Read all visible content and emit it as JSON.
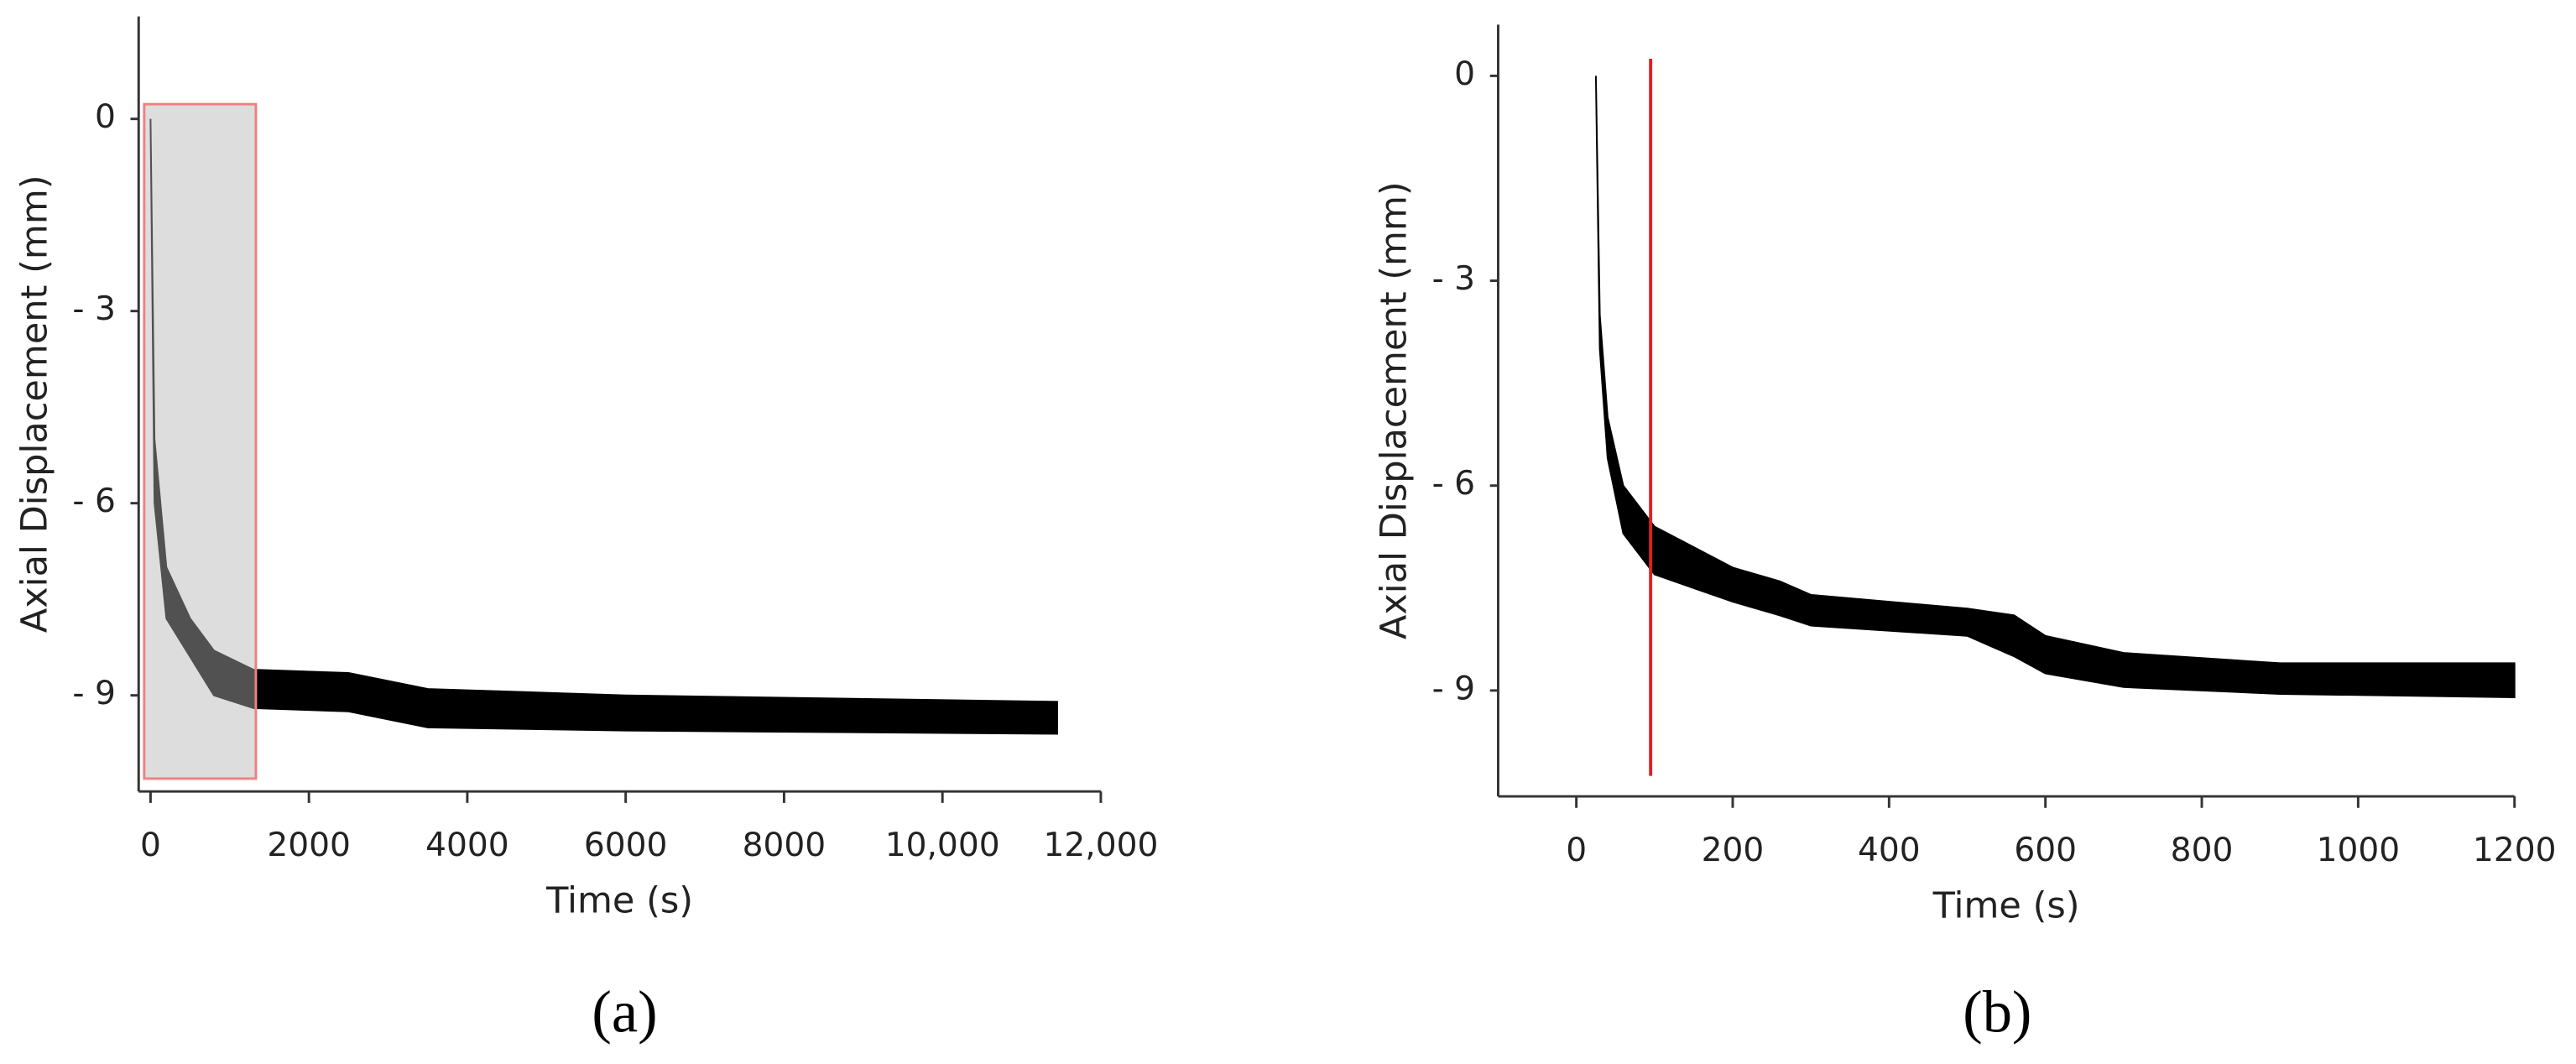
{
  "chart_data": [
    {
      "type": "band",
      "panel_label": "(a)",
      "x_label": "Time (s)",
      "y_label": "Axial Displacement (mm)",
      "color": "#000000",
      "x": [
        0,
        50,
        200,
        500,
        800,
        1300,
        2500,
        3500,
        6000,
        11450
      ],
      "upper": [
        0,
        -5,
        -7,
        -7.8,
        -8.3,
        -8.6,
        -8.65,
        -8.9,
        -9.0,
        -9.1
      ],
      "lower": [
        0,
        -6,
        -7.8,
        -8.4,
        -9.0,
        -9.2,
        -9.25,
        -9.5,
        -9.55,
        -9.6
      ],
      "xlim": [
        -150,
        12000
      ],
      "ylim": [
        -10.5,
        1.6
      ],
      "xticks": [
        0,
        2000,
        4000,
        6000,
        8000,
        {
          "value": 10000,
          "label": "10,000"
        },
        {
          "value": 12000,
          "label": "12,000"
        }
      ],
      "yticks": [
        0,
        {
          "value": -3,
          "label": "- 3"
        },
        {
          "value": -6,
          "label": "- 6"
        },
        {
          "value": -9,
          "label": "- 9"
        }
      ],
      "highlight": {
        "x": [
          -80,
          1330
        ],
        "y": [
          -10.3,
          0.23
        ],
        "fill": "#b4b4b4",
        "stroke": "#f08080"
      }
    },
    {
      "type": "band",
      "panel_label": "(b)",
      "x_label": "Time (s)",
      "y_label": "Axial Displacement (mm)",
      "color": "#000000",
      "x": [
        25,
        30,
        40,
        60,
        100,
        200,
        260,
        300,
        500,
        560,
        600,
        700,
        900,
        1200
      ],
      "upper": [
        0,
        -3.5,
        -5,
        -6,
        -6.6,
        -7.2,
        -7.4,
        -7.6,
        -7.8,
        -7.9,
        -8.2,
        -8.45,
        -8.6,
        -8.6
      ],
      "lower": [
        0,
        -4,
        -5.6,
        -6.7,
        -7.3,
        -7.7,
        -7.9,
        -8.05,
        -8.2,
        -8.5,
        -8.75,
        -8.95,
        -9.05,
        -9.1
      ],
      "xlim": [
        -100,
        1200
      ],
      "ylim": [
        -10.55,
        0.75
      ],
      "xticks": [
        0,
        200,
        400,
        600,
        800,
        1000,
        1200
      ],
      "yticks": [
        0,
        {
          "value": -3,
          "label": "- 3"
        },
        {
          "value": -6,
          "label": "- 6"
        },
        {
          "value": -9,
          "label": "- 9"
        }
      ],
      "marker": {
        "x": 95,
        "y": [
          -10.25,
          0.25
        ],
        "color": "#e02020"
      }
    }
  ]
}
